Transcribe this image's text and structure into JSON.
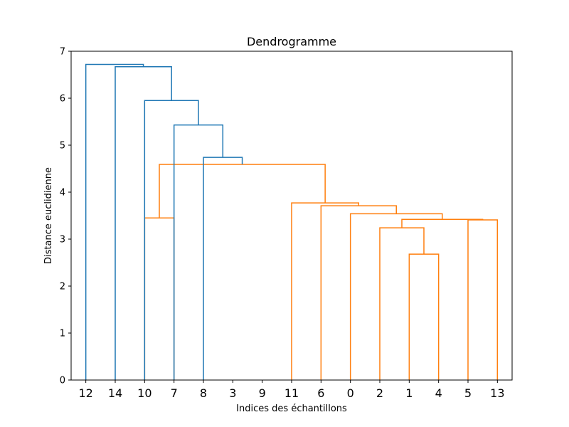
{
  "chart_data": {
    "type": "dendrogram",
    "title": "Dendrogramme",
    "xlabel": "Indices des échantillons",
    "ylabel": "Distance euclidienne",
    "ylim": [
      0,
      7
    ],
    "yticks": [
      0,
      1,
      2,
      3,
      4,
      5,
      6,
      7
    ],
    "leaf_order": [
      "12",
      "14",
      "10",
      "7",
      "8",
      "3",
      "9",
      "11",
      "6",
      "0",
      "2",
      "1",
      "4",
      "5",
      "13"
    ],
    "colors": {
      "above_threshold": "#1f77b4",
      "cluster": "#ff7f0e",
      "axes": "#000000"
    },
    "links": [
      {
        "x": [
          25,
          25,
          35,
          35
        ],
        "y": [
          0,
          3.45,
          3.45,
          0
        ],
        "color": "#ff7f0e"
      },
      {
        "x": [
          115,
          115,
          125,
          125
        ],
        "y": [
          0,
          2.68,
          2.68,
          0
        ],
        "color": "#ff7f0e"
      },
      {
        "x": [
          105,
          105,
          120,
          120
        ],
        "y": [
          0,
          3.24,
          3.24,
          2.68
        ],
        "color": "#ff7f0e"
      },
      {
        "x": [
          135,
          135,
          145,
          145
        ],
        "y": [
          0,
          3.41,
          3.41,
          0
        ],
        "color": "#ff7f0e"
      },
      {
        "x": [
          112.5,
          112.5,
          140,
          140
        ],
        "y": [
          3.24,
          3.42,
          3.42,
          3.41
        ],
        "color": "#ff7f0e"
      },
      {
        "x": [
          95,
          95,
          126.25,
          126.25
        ],
        "y": [
          0,
          3.54,
          3.54,
          3.42
        ],
        "color": "#ff7f0e"
      },
      {
        "x": [
          85,
          85,
          110.625,
          110.625
        ],
        "y": [
          0,
          3.71,
          3.71,
          3.54
        ],
        "color": "#ff7f0e"
      },
      {
        "x": [
          75,
          75,
          97.8125,
          97.8125
        ],
        "y": [
          0,
          3.77,
          3.77,
          3.71
        ],
        "color": "#ff7f0e"
      },
      {
        "x": [
          30,
          30,
          86.40625,
          86.40625
        ],
        "y": [
          3.45,
          4.59,
          4.59,
          3.77
        ],
        "color": "#ff7f0e"
      },
      {
        "x": [
          45,
          45,
          58.203125,
          58.203125
        ],
        "y": [
          0,
          4.74,
          4.74,
          4.59
        ],
        "color": "#1f77b4"
      },
      {
        "x": [
          35,
          35,
          51.6015625,
          51.6015625
        ],
        "y": [
          0,
          5.43,
          5.43,
          4.74
        ],
        "color": "#1f77b4"
      },
      {
        "x": [
          25,
          25,
          43.30078125,
          43.30078125
        ],
        "y": [
          0,
          5.95,
          5.95,
          5.43
        ],
        "color": "#1f77b4"
      },
      {
        "x": [
          15,
          15,
          34.150390625,
          34.150390625
        ],
        "y": [
          0,
          6.67,
          6.67,
          5.95
        ],
        "color": "#1f77b4"
      },
      {
        "x": [
          5,
          5,
          24.5751953125,
          24.5751953125
        ],
        "y": [
          0,
          6.72,
          6.72,
          6.67
        ],
        "color": "#1f77b4"
      }
    ]
  }
}
